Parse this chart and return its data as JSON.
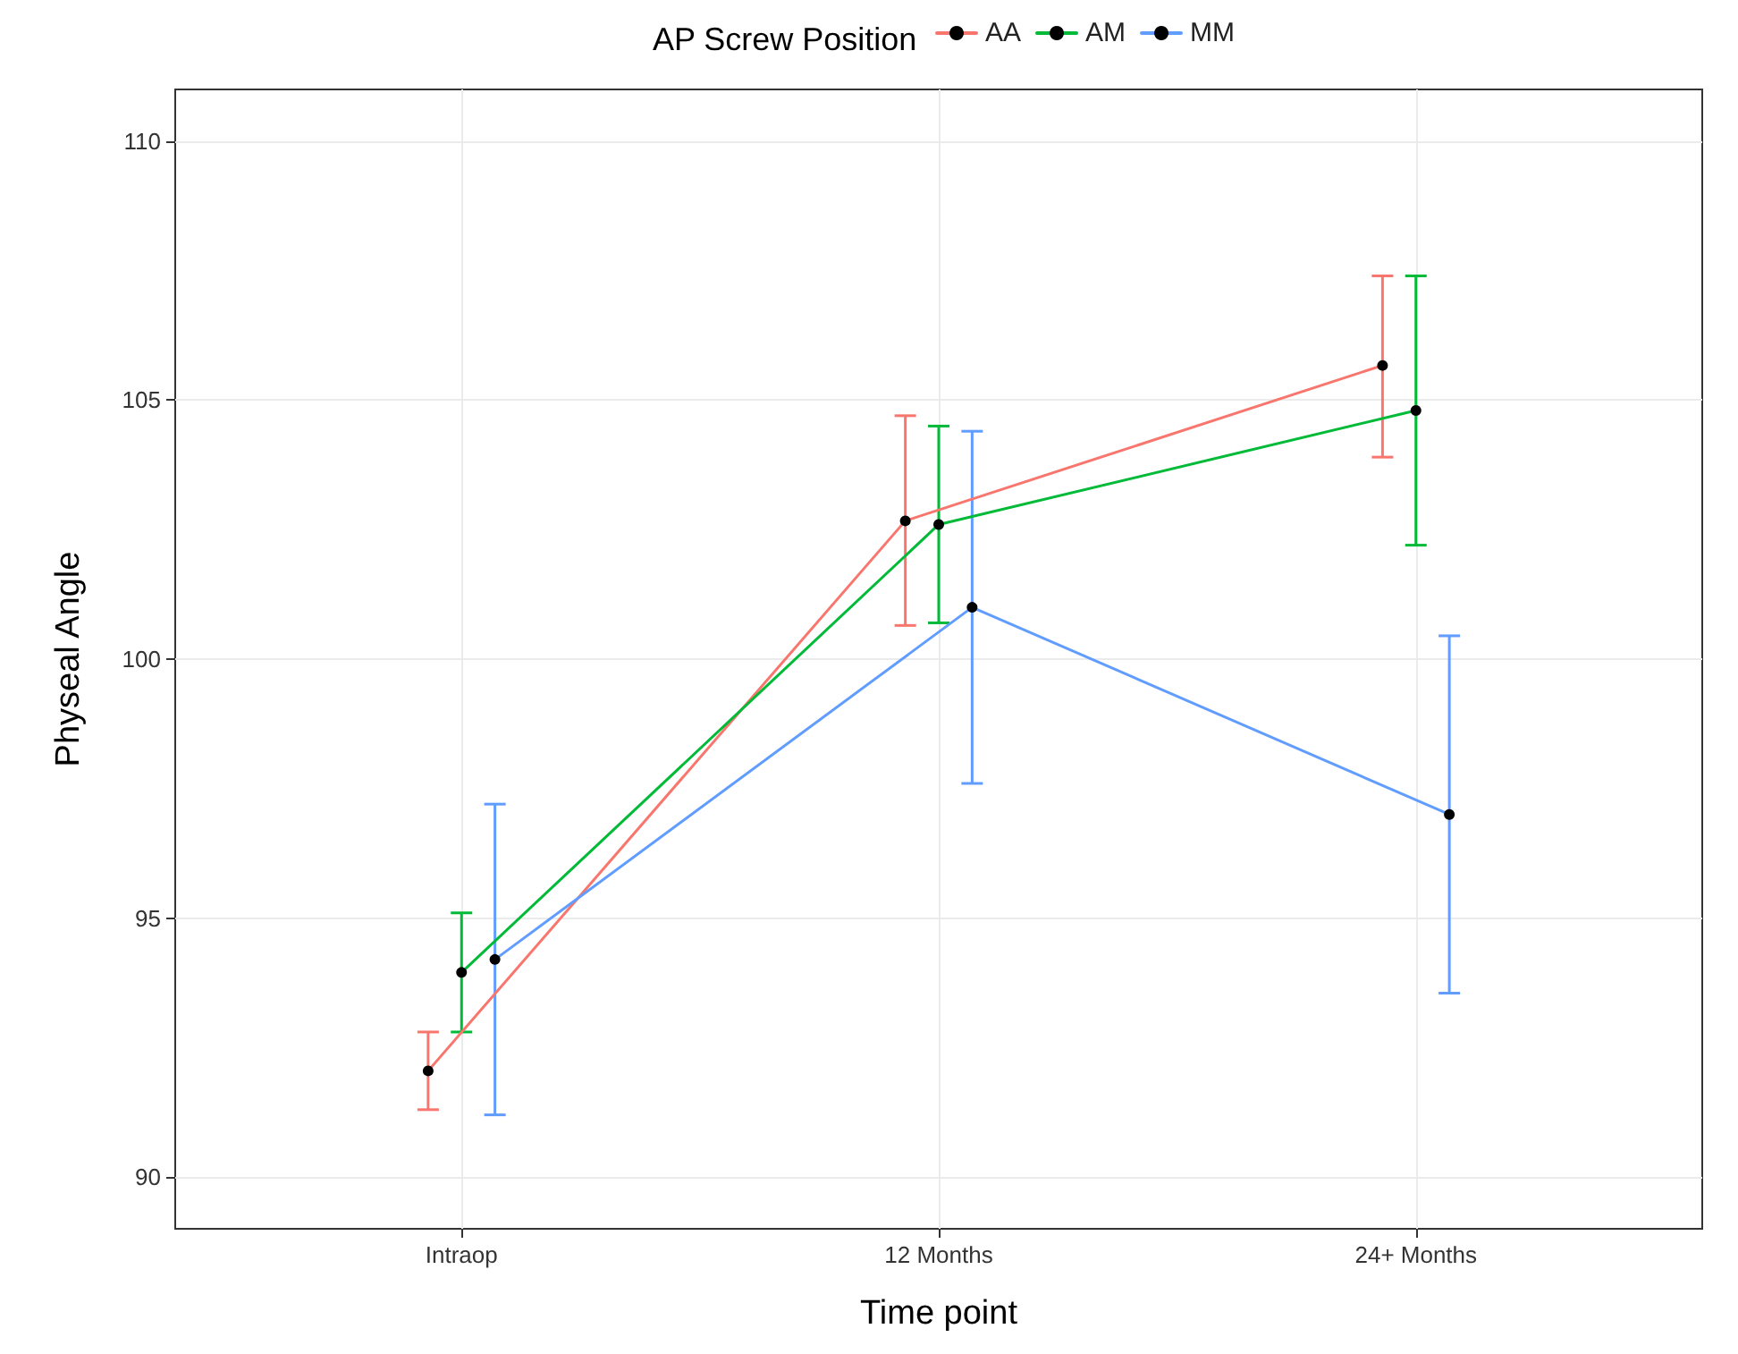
{
  "chart_data": {
    "type": "line",
    "xlabel": "Time point",
    "ylabel": "Physeal Angle",
    "legend_title": "AP Screw Position",
    "legend": "top",
    "grid": true,
    "marker": "circle",
    "line_style": "solid",
    "categories": [
      "Intraop",
      "12 Months",
      "24+ Months"
    ],
    "ylim": [
      89,
      111
    ],
    "yticks": [
      90,
      95,
      100,
      105,
      110
    ],
    "series": [
      {
        "name": "AA",
        "color": "#f8766d",
        "values": [
          92.05,
          102.67,
          105.67
        ],
        "errors": [
          [
            91.3,
            92.8
          ],
          [
            100.65,
            104.7
          ],
          [
            103.9,
            107.4
          ]
        ]
      },
      {
        "name": "AM",
        "color": "#00ba38",
        "values": [
          93.95,
          102.6,
          104.8
        ],
        "errors": [
          [
            92.8,
            95.1
          ],
          [
            100.7,
            104.5
          ],
          [
            102.2,
            107.4
          ]
        ]
      },
      {
        "name": "MM",
        "color": "#619cff",
        "values": [
          94.2,
          101.0,
          97.0
        ],
        "errors": [
          [
            91.2,
            97.2
          ],
          [
            97.6,
            104.4
          ],
          [
            93.55,
            100.45
          ]
        ]
      }
    ]
  }
}
